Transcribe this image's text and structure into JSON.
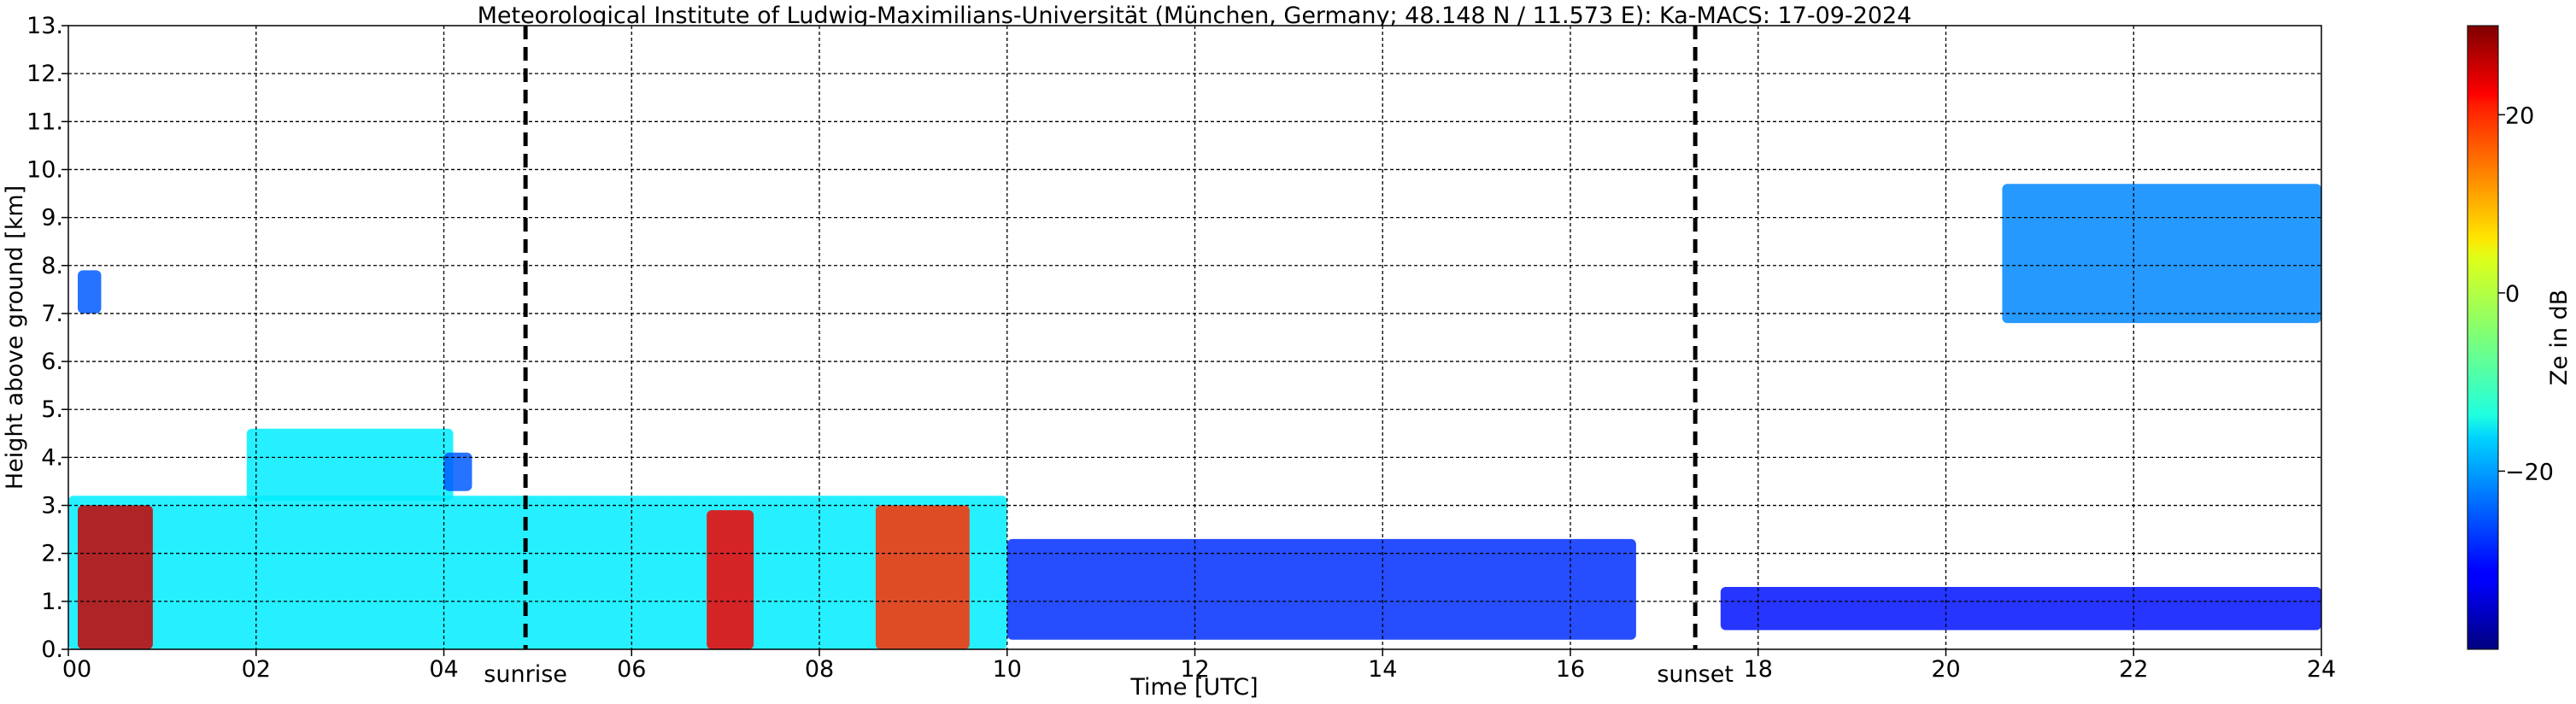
{
  "chart_data": {
    "type": "heatmap",
    "title": "Meteorological Institute of Ludwig-Maximilians-Universität (München, Germany; 48.148 N / 11.573 E):    Ka-MACS: 17-09-2024",
    "xlabel": "Time [UTC]",
    "ylabel": "Height above ground [km]",
    "xlim": [
      0,
      24
    ],
    "ylim": [
      0,
      13
    ],
    "x_ticks": [
      0,
      2,
      4,
      6,
      8,
      10,
      12,
      14,
      16,
      18,
      20,
      22,
      24
    ],
    "x_tick_labels": [
      "00",
      "02",
      "04",
      "06",
      "08",
      "10",
      "12",
      "14",
      "16",
      "18",
      "20",
      "22",
      "24"
    ],
    "y_ticks": [
      0,
      1,
      2,
      3,
      4,
      5,
      6,
      7,
      8,
      9,
      10,
      11,
      12,
      13
    ],
    "y_tick_labels": [
      "0.",
      "1.",
      "2.",
      "3.",
      "4.",
      "5.",
      "6.",
      "7.",
      "8.",
      "9.",
      "10.",
      "11.",
      "12.",
      "13."
    ],
    "grid": true,
    "colorbar": {
      "label": "Ze in dB",
      "range": [
        -40,
        30
      ],
      "ticks": [
        20,
        0,
        -20
      ],
      "tick_labels": [
        "20",
        "0",
        "−20"
      ],
      "colormap": "jet"
    },
    "markers": [
      {
        "name": "sunrise",
        "label": "sunrise",
        "x": 4.87
      },
      {
        "name": "sunset",
        "label": "sunset",
        "x": 17.33
      }
    ],
    "echo_regions": [
      {
        "name": "high-cloud-early",
        "x": [
          0.1,
          0.35
        ],
        "y": [
          7.0,
          7.9
        ],
        "ze": -25
      },
      {
        "name": "mid-cloud",
        "x": [
          1.9,
          4.1
        ],
        "y": [
          3.1,
          4.6
        ],
        "ze": -15
      },
      {
        "name": "mid-cloud-fragment",
        "x": [
          4.0,
          4.3
        ],
        "y": [
          3.3,
          4.1
        ],
        "ze": -25
      },
      {
        "name": "low-cloud-layer",
        "x": [
          0.0,
          10.0
        ],
        "y": [
          0.0,
          3.2
        ],
        "ze": -15
      },
      {
        "name": "rain-core-1",
        "x": [
          0.1,
          0.9
        ],
        "y": [
          0.0,
          3.0
        ],
        "ze": 25
      },
      {
        "name": "rain-core-2",
        "x": [
          6.8,
          7.3
        ],
        "y": [
          0.0,
          2.9
        ],
        "ze": 22
      },
      {
        "name": "rain-core-3",
        "x": [
          8.6,
          9.6
        ],
        "y": [
          0.0,
          3.0
        ],
        "ze": 18
      },
      {
        "name": "weak-echo-afternoon",
        "x": [
          10.0,
          16.7
        ],
        "y": [
          0.2,
          2.3
        ],
        "ze": -28
      },
      {
        "name": "high-cloud-evening",
        "x": [
          20.6,
          24.0
        ],
        "y": [
          6.8,
          9.7
        ],
        "ze": -22
      },
      {
        "name": "low-echo-evening",
        "x": [
          17.6,
          24.0
        ],
        "y": [
          0.4,
          1.3
        ],
        "ze": -30
      }
    ]
  }
}
